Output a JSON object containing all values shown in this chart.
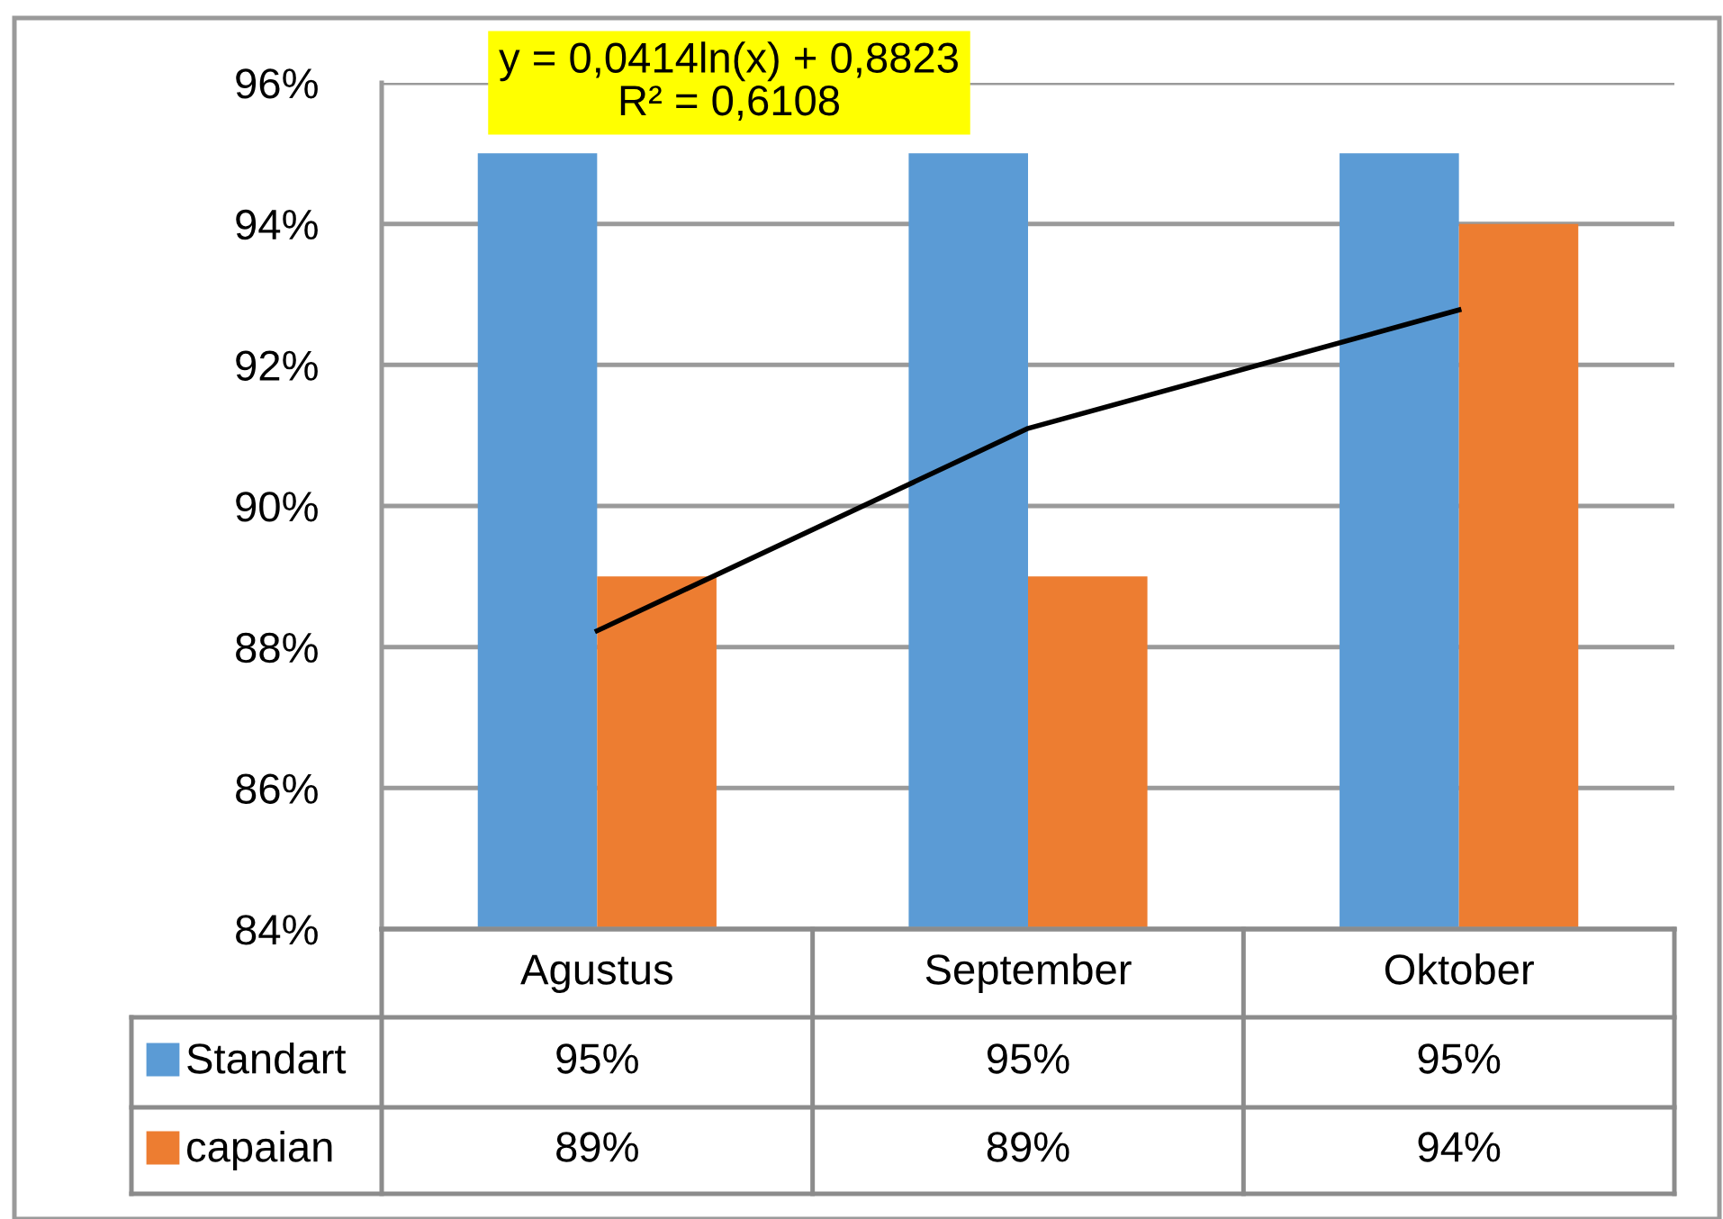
{
  "chart_data": {
    "type": "bar",
    "categories": [
      "Agustus",
      "September",
      "Oktober"
    ],
    "series": [
      {
        "name": "Standart",
        "color": "#5b9bd5",
        "values": [
          95,
          95,
          95
        ],
        "value_labels": [
          "95%",
          "95%",
          "95%"
        ]
      },
      {
        "name": "capaian",
        "color": "#ed7d31",
        "values": [
          89,
          89,
          94
        ],
        "value_labels": [
          "89%",
          "89%",
          "94%"
        ]
      },
      {
        "type": "line",
        "color": "#000000",
        "values": [
          88.23,
          91.1,
          92.78
        ]
      }
    ],
    "ylim": [
      84,
      96
    ],
    "yticks": [
      {
        "value": 84,
        "label": "84%"
      },
      {
        "value": 86,
        "label": "86%"
      },
      {
        "value": 88,
        "label": "88%"
      },
      {
        "value": 90,
        "label": "90%"
      },
      {
        "value": 92,
        "label": "92%"
      },
      {
        "value": 94,
        "label": "94%"
      },
      {
        "value": 96,
        "label": "96%"
      }
    ],
    "grid": "y",
    "legend": "bottom",
    "annotations": [
      "y = 0,0414ln(x) + 0,8823\nR² = 0,6108"
    ]
  }
}
